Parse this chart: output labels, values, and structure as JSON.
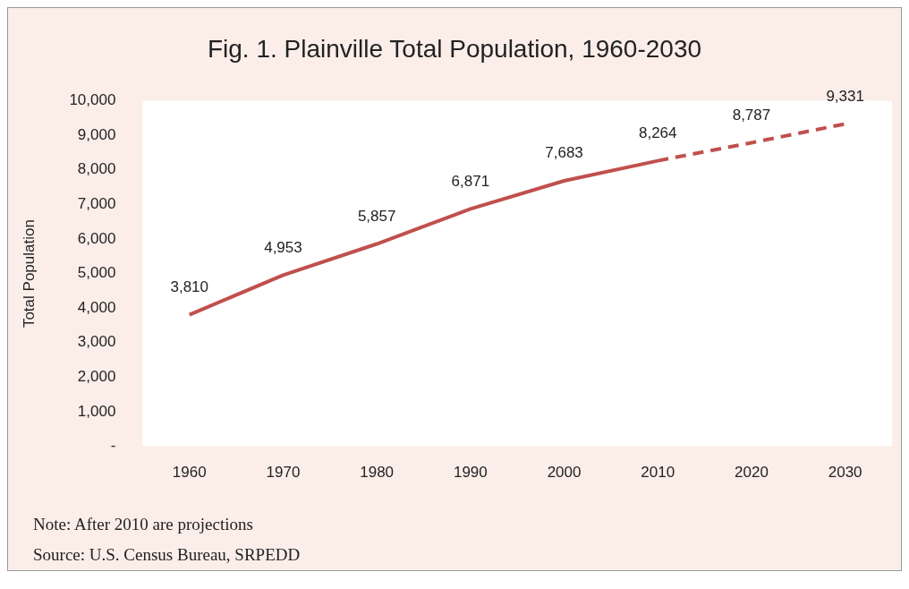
{
  "chart_data": {
    "type": "line",
    "title": "Fig. 1. Plainville Total Population, 1960-2030",
    "ylabel": "Total Population",
    "categories": [
      "1960",
      "1970",
      "1980",
      "1990",
      "2000",
      "2010",
      "2020",
      "2030"
    ],
    "series": [
      {
        "color": "#c0504d",
        "line_style": "solid",
        "values": [
          3810,
          4953,
          5857,
          6871,
          7683,
          8264,
          null,
          null
        ],
        "value_labels": [
          "3,810",
          "4,953",
          "5,857",
          "6,871",
          "7,683",
          "8,264",
          null,
          null
        ]
      },
      {
        "color": "#c0504d",
        "line_style": "dashed",
        "values": [
          null,
          null,
          null,
          null,
          null,
          8264,
          8787,
          9331
        ],
        "value_labels": [
          null,
          null,
          null,
          null,
          null,
          null,
          "8,787",
          "9,331"
        ]
      }
    ],
    "ylim": [
      0,
      10000
    ],
    "yticks": [
      {
        "value": 0,
        "label": "-"
      },
      {
        "value": 1000,
        "label": "1,000"
      },
      {
        "value": 2000,
        "label": "2,000"
      },
      {
        "value": 3000,
        "label": "3,000"
      },
      {
        "value": 4000,
        "label": "4,000"
      },
      {
        "value": 5000,
        "label": "5,000"
      },
      {
        "value": 6000,
        "label": "6,000"
      },
      {
        "value": 7000,
        "label": "7,000"
      },
      {
        "value": 8000,
        "label": "8,000"
      },
      {
        "value": 9000,
        "label": "9,000"
      },
      {
        "value": 10000,
        "label": "10,000"
      }
    ],
    "grid": false,
    "legend": false,
    "marker": "none",
    "annotations": [
      "Note: After 2010 are projections",
      "Source: U.S. Census Bureau, SRPEDD"
    ]
  }
}
